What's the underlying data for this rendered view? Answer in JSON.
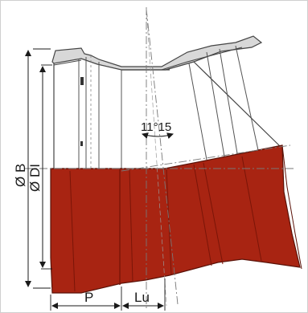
{
  "drawing": {
    "labels": {
      "outer_diameter": "Ø B",
      "inner_diameter": "Ø DI",
      "angle": "11°15",
      "socket_depth": "P",
      "useful_length": "Lu"
    },
    "colors": {
      "pipe_body": "#a82412",
      "pipe_body_shade": "#8c1a0b",
      "outline": "#3a3a3a",
      "background": "#ffffff"
    }
  }
}
